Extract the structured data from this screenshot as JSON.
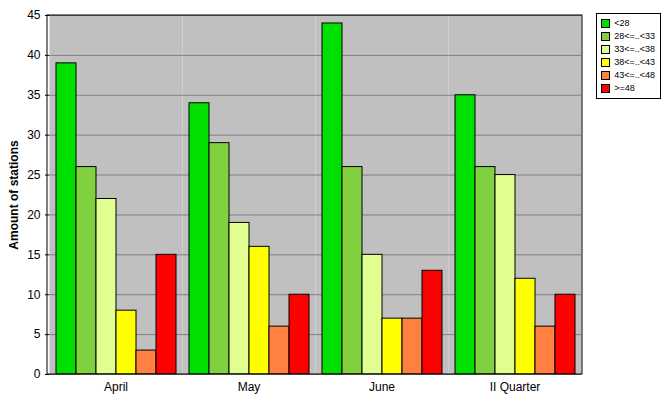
{
  "chart_data": {
    "type": "bar",
    "categories": [
      "April",
      "May",
      "June",
      "II Quarter"
    ],
    "series": [
      {
        "name": "<28",
        "color": "#00e000",
        "values": [
          39,
          34,
          44,
          35
        ]
      },
      {
        "name": "28<=..<33",
        "color": "#80d040",
        "values": [
          26,
          29,
          26,
          26
        ]
      },
      {
        "name": "33<=..<38",
        "color": "#e0ff90",
        "values": [
          22,
          19,
          15,
          25
        ]
      },
      {
        "name": "38<=..<43",
        "color": "#ffff00",
        "values": [
          8,
          16,
          7,
          12
        ]
      },
      {
        "name": "43<=..<48",
        "color": "#ff8040",
        "values": [
          3,
          6,
          7,
          6
        ]
      },
      {
        "name": ">=48",
        "color": "#ff0000",
        "values": [
          15,
          10,
          13,
          10
        ]
      }
    ],
    "y_label": "Amount of stations",
    "ylim": [
      0,
      45
    ],
    "yticks": [
      0,
      5,
      10,
      15,
      20,
      25,
      30,
      35,
      40,
      45
    ],
    "grid": true,
    "legend": "top-right"
  }
}
